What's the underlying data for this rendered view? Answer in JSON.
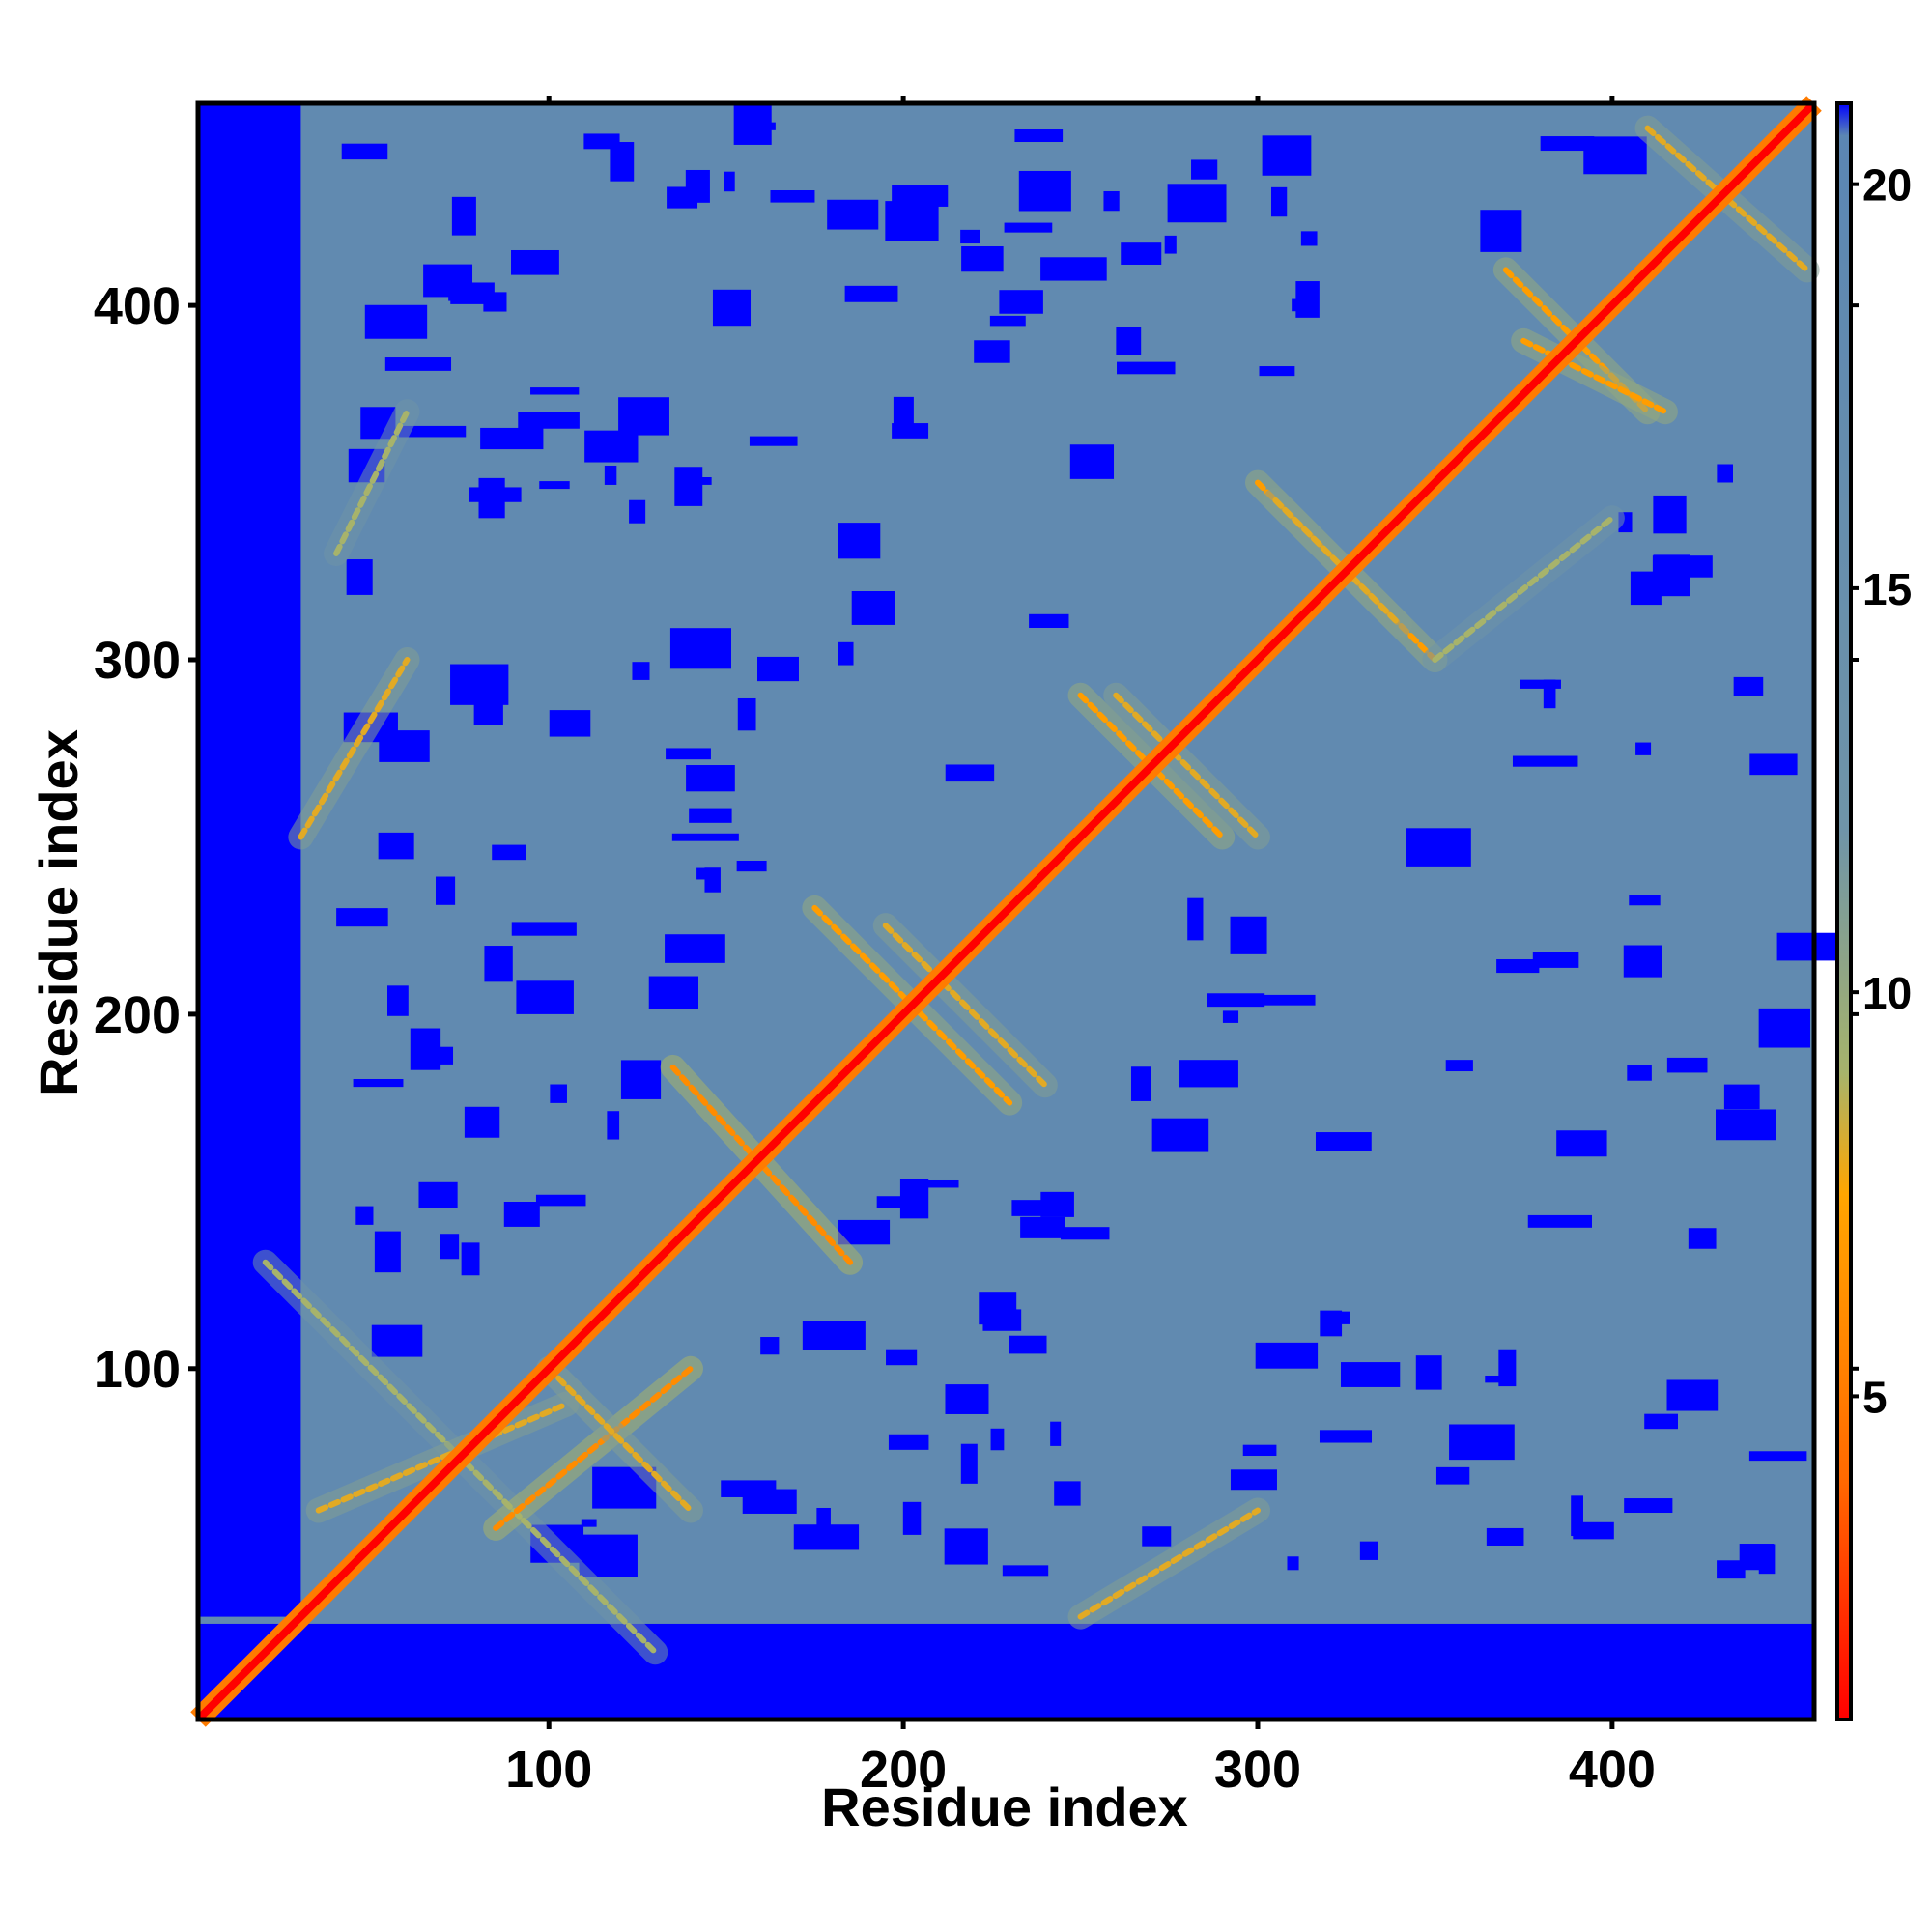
{
  "chart_data": {
    "type": "heatmap",
    "title": "",
    "xlabel": "Residue index",
    "ylabel": "Residue index",
    "xlim": [
      1,
      457
    ],
    "ylim": [
      1,
      457
    ],
    "x_ticks": [
      100,
      200,
      300,
      400
    ],
    "y_ticks": [
      100,
      200,
      300,
      400
    ],
    "colorbar": {
      "min": 1,
      "max": 21,
      "ticks": [
        5,
        10,
        15,
        20
      ],
      "stops": [
        {
          "value": 1,
          "color": "#ff0000"
        },
        {
          "value": 4,
          "color": "#ff6a00"
        },
        {
          "value": 7.5,
          "color": "#ffa500"
        },
        {
          "value": 9,
          "color": "#a7b36b"
        },
        {
          "value": 12,
          "color": "#6f94a8"
        },
        {
          "value": 20.6,
          "color": "#5b86b3"
        },
        {
          "value": 21,
          "color": "#0000ff"
        }
      ]
    },
    "diagonal_value": 1,
    "background_value": 18,
    "far_value": 21,
    "contact_features": [
      {
        "x": [
          20,
          130
        ],
        "y": [
          130,
          20
        ],
        "value": 9
      },
      {
        "x": [
          35,
          105
        ],
        "y": [
          60,
          90
        ],
        "value": 8
      },
      {
        "x": [
          85,
          140
        ],
        "y": [
          55,
          100
        ],
        "value": 6
      },
      {
        "x": [
          135,
          185
        ],
        "y": [
          185,
          130
        ],
        "value": 6
      },
      {
        "x": [
          175,
          230
        ],
        "y": [
          230,
          175
        ],
        "value": 7
      },
      {
        "x": [
          195,
          240
        ],
        "y": [
          225,
          180
        ],
        "value": 8
      },
      {
        "x": [
          250,
          290
        ],
        "y": [
          290,
          250
        ],
        "value": 7
      },
      {
        "x": [
          260,
          300
        ],
        "y": [
          290,
          250
        ],
        "value": 8
      },
      {
        "x": [
          300,
          350
        ],
        "y": [
          350,
          300
        ],
        "value": 7
      },
      {
        "x": [
          305,
          340
        ],
        "y": [
          345,
          310
        ],
        "value": 8
      },
      {
        "x": [
          370,
          410
        ],
        "y": [
          410,
          370
        ],
        "value": 7
      },
      {
        "x": [
          375,
          415
        ],
        "y": [
          390,
          370
        ],
        "value": 7
      },
      {
        "x": [
          410,
          455
        ],
        "y": [
          450,
          410
        ],
        "value": 8
      },
      {
        "x": [
          30,
          60
        ],
        "y": [
          250,
          300
        ],
        "value": 8
      },
      {
        "x": [
          250,
          300
        ],
        "y": [
          30,
          60
        ],
        "value": 8
      },
      {
        "x": [
          350,
          400
        ],
        "y": [
          300,
          340
        ],
        "value": 9
      },
      {
        "x": [
          40,
          60
        ],
        "y": [
          330,
          370
        ],
        "value": 9
      },
      {
        "x": [
          100,
          140
        ],
        "y": [
          100,
          60
        ],
        "value": 8
      }
    ]
  }
}
